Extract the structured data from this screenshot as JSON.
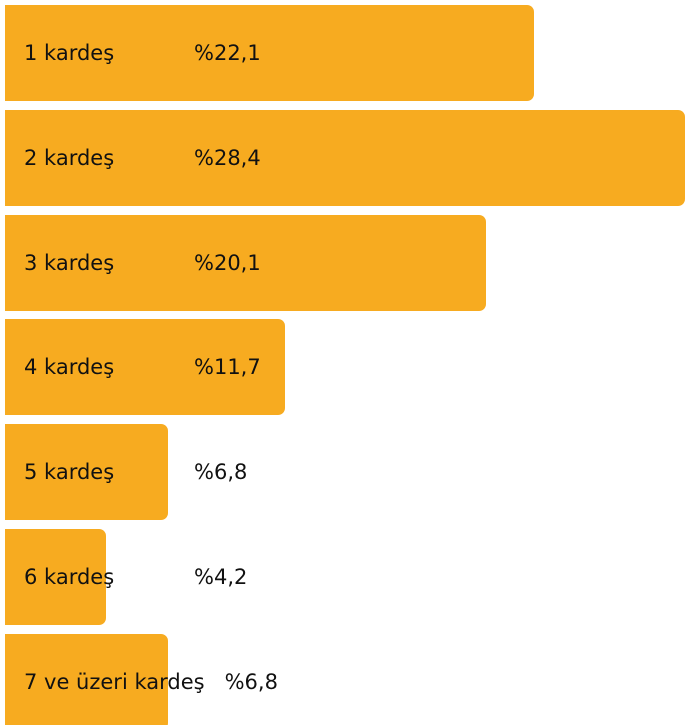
{
  "chart_data": {
    "type": "bar",
    "orientation": "horizontal",
    "color": "#f7ab20",
    "categories": [
      "1 kardeş",
      "2 kardeş",
      "3 kardeş",
      "4 kardeş",
      "5 kardeş",
      "6 kardeş",
      "7 ve üzeri kardeş"
    ],
    "values": [
      22.1,
      28.4,
      20.1,
      11.7,
      6.8,
      4.2,
      6.8
    ],
    "value_labels": [
      "%22,1",
      "%28,4",
      "%20,1",
      "%11,7",
      "%6,8",
      "%4,2",
      "%6,8"
    ]
  }
}
